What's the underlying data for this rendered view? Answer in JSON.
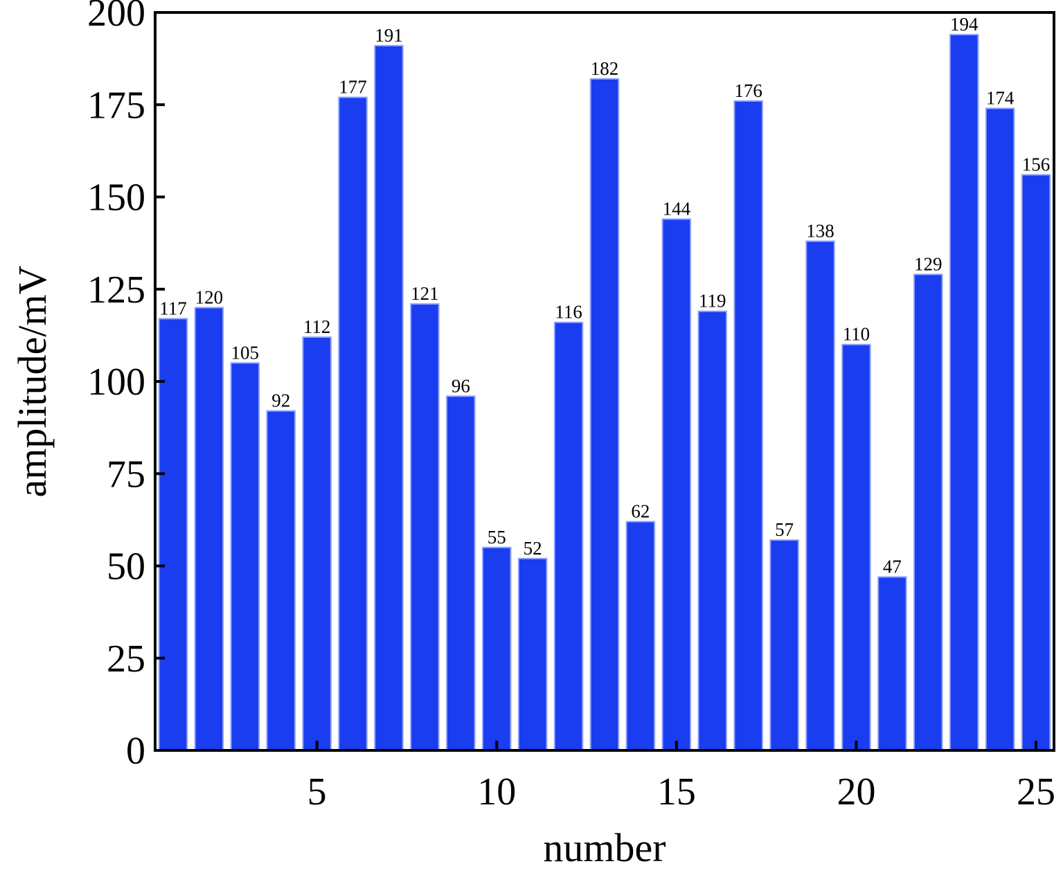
{
  "chart_data": {
    "type": "bar",
    "title": "",
    "xlabel": "number",
    "ylabel": "amplitude/mV",
    "x": [
      1,
      2,
      3,
      4,
      5,
      6,
      7,
      8,
      9,
      10,
      11,
      12,
      13,
      14,
      15,
      16,
      17,
      18,
      19,
      20,
      21,
      22,
      23,
      24,
      25
    ],
    "values": [
      117,
      120,
      105,
      92,
      112,
      177,
      191,
      121,
      96,
      55,
      52,
      116,
      182,
      62,
      144,
      119,
      176,
      57,
      138,
      110,
      47,
      129,
      194,
      174,
      156
    ],
    "data_labels": [
      "117",
      "120",
      "105",
      "92",
      "112",
      "177",
      "191",
      "121",
      "96",
      "55",
      "52",
      "116",
      "182",
      "62",
      "144",
      "119",
      "176",
      "57",
      "138",
      "110",
      "47",
      "129",
      "194",
      "174",
      "156"
    ],
    "xlim": [
      0.5,
      25.5
    ],
    "ylim": [
      0,
      200
    ],
    "x_ticks": [
      5,
      10,
      15,
      20,
      25
    ],
    "x_tick_labels": [
      "5",
      "10",
      "15",
      "20",
      "25"
    ],
    "y_ticks": [
      0,
      25,
      50,
      75,
      100,
      125,
      150,
      175,
      200
    ],
    "y_tick_labels": [
      "0",
      "25",
      "50",
      "75",
      "100",
      "125",
      "150",
      "175",
      "200"
    ],
    "grid": false,
    "legend": "none",
    "colors": {
      "bar_fill": "#1a3df0",
      "bar_edge": "#8fa3ff",
      "axis": "#000000"
    }
  }
}
